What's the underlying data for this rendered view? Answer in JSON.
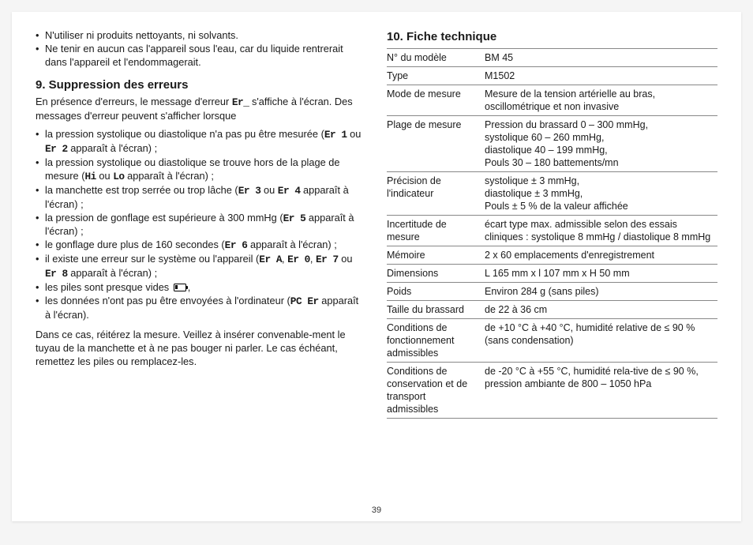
{
  "page_number": "39",
  "left": {
    "bullets_top": [
      "N'utiliser ni produits nettoyants, ni solvants.",
      "Ne tenir en aucun cas l'appareil sous l'eau, car du liquide rentrerait dans l'appareil et l'endommagerait."
    ],
    "heading": "9. Suppression des erreurs",
    "intro_a": "En présence d'erreurs, le message d'erreur ",
    "intro_code": "Er_",
    "intro_b": " s'affiche à l'écran. Des messages d'erreur peuvent s'afficher lorsque",
    "errs": [
      {
        "a": "la pression systolique ou diastolique n'a pas pu être mesurée (",
        "c": "Er 1",
        "m": " ou ",
        "c2": "Er 2",
        "b": " apparaît à l'écran) ;"
      },
      {
        "a": "la pression systolique ou diastolique se trouve hors de la plage de mesure (",
        "c": "Hi",
        "m": " ou ",
        "c2": "Lo",
        "b": " apparaît à l'écran) ;"
      },
      {
        "a": "la manchette est trop serrée ou trop lâche (",
        "c": "Er 3",
        "m": " ou ",
        "c2": "Er 4",
        "b": " apparaît à l'écran) ;"
      },
      {
        "a": "la pression de gonflage est supérieure à 300 mmHg (",
        "c": "Er 5",
        "m": "",
        "c2": "",
        "b": " apparaît à l'écran) ;"
      },
      {
        "a": "le gonflage dure plus de 160 secondes (",
        "c": "Er 6",
        "m": "",
        "c2": "",
        "b": " apparaît à l'écran) ;"
      },
      {
        "a": "il existe une erreur sur le système ou l'appareil (",
        "c": "Er A",
        "m": ", ",
        "c2": "Er 0",
        "b": ", "
      },
      {
        "a": "les piles sont presque vides ",
        "c": "",
        "m": "",
        "c2": "",
        "b": ","
      },
      {
        "a": "les données n'ont pas pu être envoyées à l'ordinateur (",
        "c": "PC Er",
        "m": "",
        "c2": "",
        "b": " apparaît à l'écran)."
      }
    ],
    "err6_extra_a": "Er 7",
    "err6_extra_m": " ou ",
    "err6_extra_b": "Er 8",
    "err6_extra_c": " apparaît à l'écran) ;",
    "outro": "Dans ce cas, réitérez la mesure. Veillez à insérer convenable-ment le tuyau de la manchette et à ne pas bouger ni parler. Le cas échéant, remettez les piles ou remplacez-les."
  },
  "right": {
    "heading": "10. Fiche technique",
    "rows": [
      {
        "k": "N° du modèle",
        "v": "BM 45"
      },
      {
        "k": "Type",
        "v": "M1502"
      },
      {
        "k": "Mode de mesure",
        "v": "Mesure de la tension artérielle au bras, oscillométrique et non invasive"
      },
      {
        "k": "Plage de mesure",
        "v": "Pression du brassard 0 – 300 mmHg,\nsystolique 60 – 260 mmHg,\ndiastolique 40 – 199 mmHg,\nPouls 30 – 180 battements/mn"
      },
      {
        "k": "Précision de l'indicateur",
        "v": "systolique ± 3 mmHg,\ndiastolique ± 3 mmHg,\nPouls ± 5 % de la valeur affichée"
      },
      {
        "k": "Incertitude de mesure",
        "v": "écart type max. admissible selon des essais cliniques : systolique 8 mmHg / diastolique 8 mmHg"
      },
      {
        "k": "Mémoire",
        "v": "2 x 60 emplacements d'enregistrement"
      },
      {
        "k": "Dimensions",
        "v": "L 165 mm x l 107 mm x H 50 mm"
      },
      {
        "k": "Poids",
        "v": "Environ 284 g (sans piles)"
      },
      {
        "k": "Taille du brassard",
        "v": "de 22 à 36 cm"
      },
      {
        "k": "Conditions de fonctionnement admissibles",
        "v": "de +10 °C à +40 °C, humidité relative de ≤ 90 % (sans condensation)"
      },
      {
        "k": "Conditions de conservation et de transport admissibles",
        "v": "de -20 °C à +55 °C, humidité rela-tive de ≤ 90 %, pression ambiante de 800 – 1050 hPa"
      }
    ]
  }
}
